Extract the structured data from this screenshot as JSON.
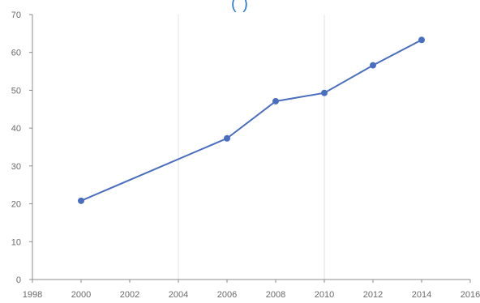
{
  "chart_data": {
    "type": "line",
    "title": "(                    )",
    "xlabel": "",
    "ylabel": "",
    "xlim": [
      1998,
      2016
    ],
    "ylim": [
      0,
      70
    ],
    "x_ticks": [
      1998,
      2000,
      2002,
      2004,
      2006,
      2008,
      2010,
      2012,
      2014,
      2016
    ],
    "y_ticks": [
      0,
      10,
      20,
      30,
      40,
      50,
      60,
      70
    ],
    "x_tick_labels": [
      "1998",
      "2000",
      "2002",
      "2004",
      "2006",
      "2008",
      "2010",
      "2012",
      "2014",
      "2016"
    ],
    "y_tick_labels": [
      "0",
      "10",
      "20",
      "30",
      "40",
      "50",
      "60",
      "70"
    ],
    "grid": {
      "vertical_at": [
        2004,
        2010
      ],
      "horizontal": false
    },
    "legend": "none",
    "series": [
      {
        "x": [
          2000,
          2006,
          2008,
          2010,
          2012,
          2014
        ],
        "y": [
          20.8,
          37.3,
          47.1,
          49.3,
          56.6,
          63.3
        ]
      }
    ],
    "colors": {
      "series": "#4a6ebf",
      "title": "#2a7ad8",
      "axis": "#8c8c8c",
      "grid": "#e3e3e3"
    }
  }
}
